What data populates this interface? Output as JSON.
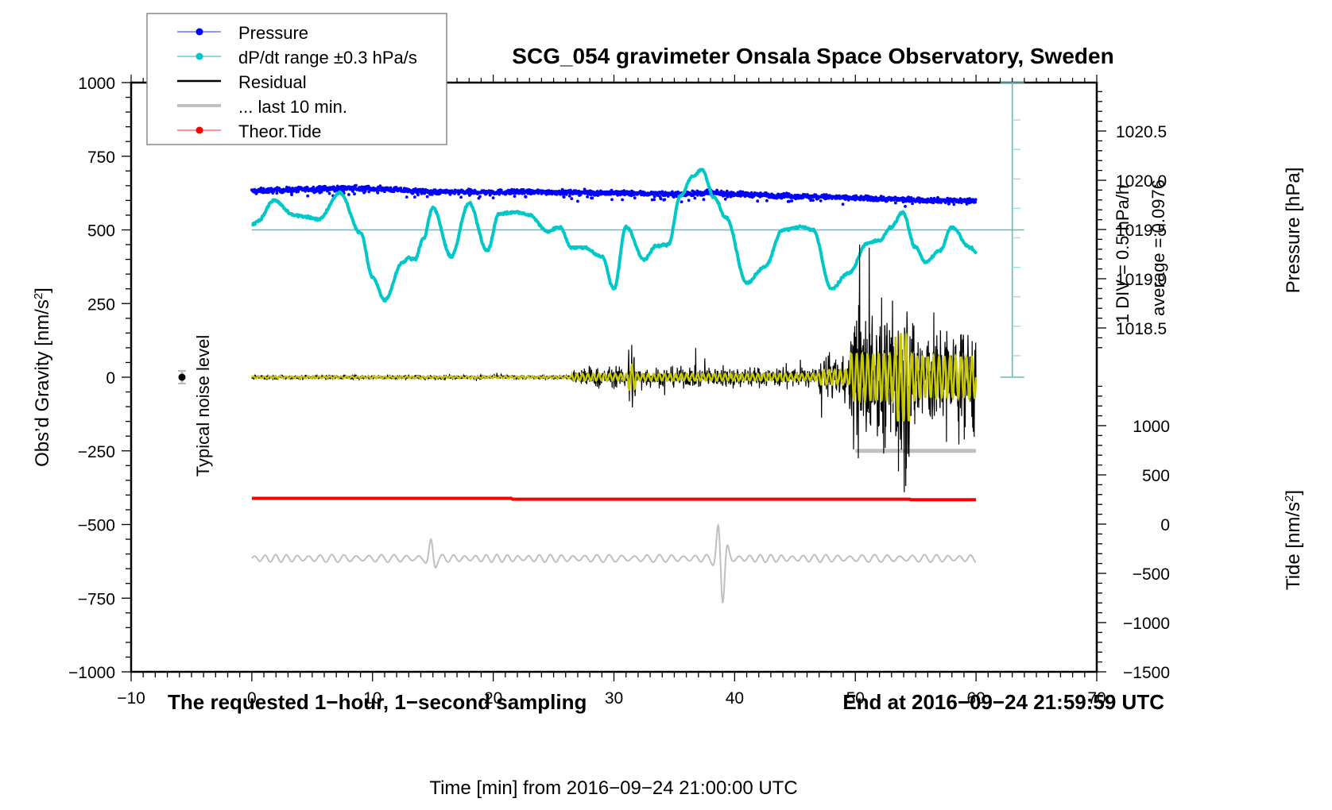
{
  "chart_data": {
    "type": "line",
    "title": "SCG_054 gravimeter Onsala Space Observatory, Sweden",
    "xlabel": "Time [min] from 2016−09−24 21:00:00 UTC",
    "ylabel_left": "Obs’d Gravity [nm/s²]",
    "ylabel_right_top": "Pressure [hPa]",
    "ylabel_right_bottom": "Tide [nm/s²]",
    "xlim": [
      -10,
      70
    ],
    "ylim_left": [
      -1000,
      1000
    ],
    "x_ticks": [
      "−10",
      "0",
      "10",
      "20",
      "30",
      "40",
      "50",
      "60",
      "70"
    ],
    "x_tick_values": [
      -10,
      0,
      10,
      20,
      30,
      40,
      50,
      60,
      70
    ],
    "y_left_ticks": [
      "1000",
      "750",
      "500",
      "250",
      "0",
      "−250",
      "−500",
      "−750",
      "−1000"
    ],
    "y_left_tick_values": [
      1000,
      750,
      500,
      250,
      0,
      -250,
      -500,
      -750,
      -1000
    ],
    "pressure_ticks": [
      "1020.5",
      "1020.0",
      "1019.5",
      "1019.0",
      "1018.5"
    ],
    "pressure_tick_values": [
      1020.5,
      1020.0,
      1019.5,
      1019.0,
      1018.5
    ],
    "tide_ticks": [
      "1000",
      "500",
      "0",
      "−500",
      "−1000",
      "−1500"
    ],
    "tide_tick_values": [
      1000,
      500,
      0,
      -500,
      -1000,
      -1500
    ],
    "legend": {
      "placement": "top-left",
      "entries": [
        {
          "label": "Pressure",
          "color": "#0000ff",
          "style": "line-dot"
        },
        {
          "label": "dP/dt range ±0.3 hPa/s",
          "color": "#00c8c8",
          "style": "line-dot"
        },
        {
          "label": "Residual",
          "color": "#000000",
          "style": "line"
        },
        {
          "label": "... last 10 min.",
          "color": "#c0c0c0",
          "style": "thick-line"
        },
        {
          "label": "Theor.Tide",
          "color": "#ff0000",
          "style": "line-dot"
        }
      ]
    },
    "annotations": {
      "bottom_left": "The requested 1−hour, 1−second sampling",
      "bottom_right": "End at 2016−09−24 21:59:59 UTC",
      "noise_label": "Typical noise level",
      "dpdt_scale": "1 DIV = 0.5 hPa/h",
      "dpdt_average": "average = 0.0976"
    },
    "series": [
      {
        "name": "Pressure",
        "axis": "pressure_hPa",
        "color": "#0000ff",
        "x": [
          0,
          5,
          8,
          11,
          15,
          20,
          25,
          30,
          35,
          38,
          40,
          45,
          50,
          55,
          60
        ],
        "values": [
          1019.89,
          1019.91,
          1019.92,
          1019.91,
          1019.88,
          1019.88,
          1019.88,
          1019.87,
          1019.86,
          1019.87,
          1019.86,
          1019.84,
          1019.82,
          1019.8,
          1019.79
        ]
      },
      {
        "name": "dP/dt",
        "axis": "left_gravity",
        "color": "#00c8c8",
        "x": [
          0,
          0.5,
          1.8,
          3.5,
          4.5,
          5.5,
          7.3,
          9,
          10,
          11,
          12.5,
          13,
          13.5,
          14.2,
          15,
          16.5,
          18,
          19.5,
          20.5,
          22,
          23,
          24.5,
          25.5,
          26.5,
          27.5,
          29,
          30,
          31,
          32.5,
          33.5,
          34.5,
          35.5,
          36.5,
          37.3,
          38.3,
          39.3,
          41,
          42.5,
          44,
          45.5,
          46.5,
          48,
          49.5,
          51,
          52,
          53,
          53.9,
          55,
          55.8,
          57,
          58,
          59.5,
          60
        ],
        "values": [
          518,
          530,
          600,
          550,
          545,
          535,
          625,
          490,
          340,
          262,
          390,
          405,
          400,
          470,
          575,
          410,
          590,
          430,
          555,
          560,
          550,
          495,
          510,
          440,
          440,
          410,
          300,
          510,
          400,
          445,
          450,
          615,
          680,
          705,
          610,
          540,
          320,
          375,
          500,
          510,
          500,
          300,
          355,
          455,
          465,
          510,
          560,
          440,
          390,
          430,
          510,
          440,
          425
        ]
      },
      {
        "name": "Residual",
        "axis": "left_gravity",
        "color": "#000000",
        "description": "noisy trace around 0; amplitude ~±10 until 26.5 min, ~±50 to 47 min, bursts to +440/−380 between 47 and 60 min",
        "envelope_x": [
          0,
          26.5,
          31.5,
          47,
          50,
          53.8,
          60
        ],
        "envelope_amplitude": [
          10,
          40,
          150,
          60,
          320,
          440,
          240
        ]
      },
      {
        "name": "Filtered residual",
        "axis": "left_gravity",
        "color": "#c8c800",
        "envelope_x": [
          0,
          26.5,
          47,
          50,
          53.8,
          60
        ],
        "envelope_amplitude": [
          4,
          15,
          20,
          100,
          160,
          80
        ]
      },
      {
        "name": "... last 10 min.",
        "axis": "left_gravity",
        "color": "#c0c0c0",
        "x": [
          50,
          60
        ],
        "values": [
          -250,
          -250
        ]
      },
      {
        "name": "Theor.Tide",
        "axis": "left_gravity",
        "color": "#ff0000",
        "x": [
          0,
          21.5,
          21.6,
          54.5,
          54.6,
          60
        ],
        "values": [
          -411,
          -411,
          -414,
          -414,
          -416,
          -416
        ]
      },
      {
        "name": "Gray oscillation",
        "axis": "left_gravity",
        "color": "#c0c0c0",
        "baseline": -615,
        "description": "small oscillation around −615, large burst near 38.8 min reaching −475 / −770",
        "x": [
          0,
          15,
          38.5,
          38.8,
          39.2,
          60
        ],
        "peaks": [
          10,
          60,
          70,
          140,
          150,
          25
        ]
      }
    ],
    "noise_marker": {
      "x": -7,
      "y": 0,
      "error": 20
    }
  }
}
